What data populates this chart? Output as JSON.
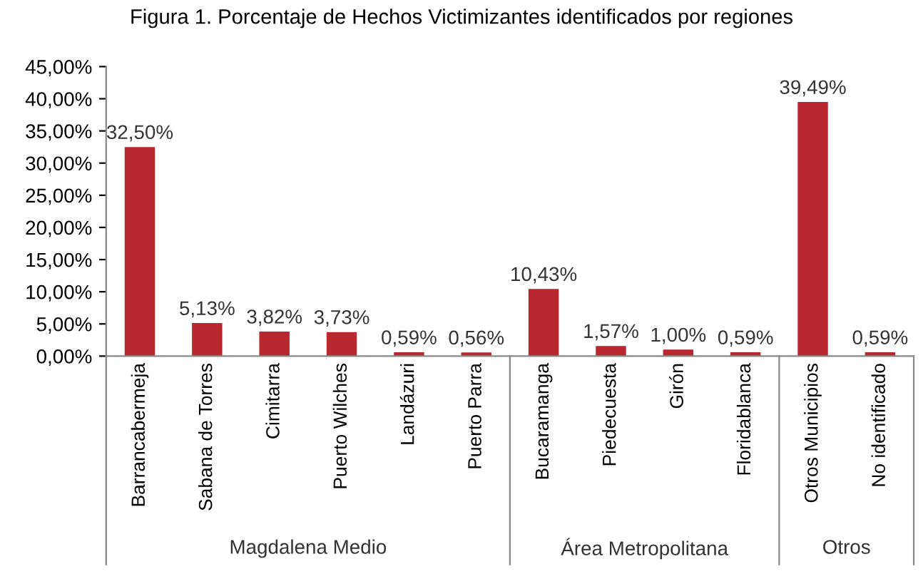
{
  "chart_data": {
    "type": "bar",
    "title": "Figura 1. Porcentaje de Hechos Victimizantes identificados por regiones",
    "categories": [
      "Barrancabermeja",
      "Sabana de Torres",
      "Cimitarra",
      "Puerto Wilches",
      "Landázuri",
      "Puerto Parra",
      "Bucaramanga",
      "Piedecuesta",
      "Girón",
      "Floridablanca",
      "Otros Municipios",
      "No identificado"
    ],
    "values": [
      32.5,
      5.13,
      3.82,
      3.73,
      0.59,
      0.56,
      10.43,
      1.57,
      1.0,
      0.59,
      39.49,
      0.59
    ],
    "value_labels": [
      "32,50%",
      "5,13%",
      "3,82%",
      "3,73%",
      "0,59%",
      "0,56%",
      "10,43%",
      "1,57%",
      "1,00%",
      "0,59%",
      "39,49%",
      "0,59%"
    ],
    "color": "#b8282e",
    "ylim": [
      0,
      45
    ],
    "yticks": [
      {
        "value": 0,
        "label": "0,00%"
      },
      {
        "value": 5,
        "label": "5,00%"
      },
      {
        "value": 10,
        "label": "10,00%"
      },
      {
        "value": 15,
        "label": "15,00%"
      },
      {
        "value": 20,
        "label": "20,00%"
      },
      {
        "value": 25,
        "label": "25,00%"
      },
      {
        "value": 30,
        "label": "30,00%"
      },
      {
        "value": 35,
        "label": "35,00%"
      },
      {
        "value": 40,
        "label": "40,00%"
      },
      {
        "value": 45,
        "label": "45,00%"
      }
    ],
    "grid": false,
    "annotations": [
      "Magdalena Medio",
      "Área Metropolitana",
      "Otros"
    ]
  }
}
